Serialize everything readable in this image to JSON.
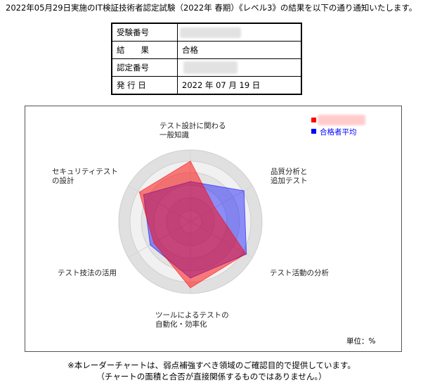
{
  "intro_text": "2022年05月29日実施のIT検証技術者認定試験（2022年 春期）《レベル3》の結果を以下の通り通知いたします。",
  "result_table": {
    "rows": [
      {
        "label": "受験番号"
      },
      {
        "label": "結　　果",
        "value": "合格"
      },
      {
        "label": "認定番号"
      },
      {
        "label": "発 行 日",
        "value": "2022 年 07 月 19 日"
      }
    ]
  },
  "chart_data": {
    "type": "radar",
    "axes": [
      [
        "テスト設計に関わる",
        "一般知識"
      ],
      [
        "品質分析と",
        "追加テスト"
      ],
      [
        "テスト活動の分析"
      ],
      [
        "ツールによるテストの",
        "自動化・効率化"
      ],
      [
        "テスト技法の活用"
      ],
      [
        "セキュリティテスト",
        "の設計"
      ]
    ],
    "unit": "単位：%",
    "rlim": [
      0,
      100
    ],
    "grid": true,
    "legend": "top-right",
    "series": [
      {
        "color": "#ff0000",
        "values": [
          86,
          40,
          91,
          94,
          60,
          84
        ]
      },
      {
        "name": "合格者平均",
        "color": "#0000ff",
        "values": [
          57,
          88,
          92,
          80,
          66,
          77
        ]
      }
    ]
  },
  "footer": {
    "line1": "※本レーダーチャートは、弱点補強すべき領域のご確認目的で提供しています。",
    "line2": "（チャートの面積と合否が直接関係するものではありません。）"
  }
}
